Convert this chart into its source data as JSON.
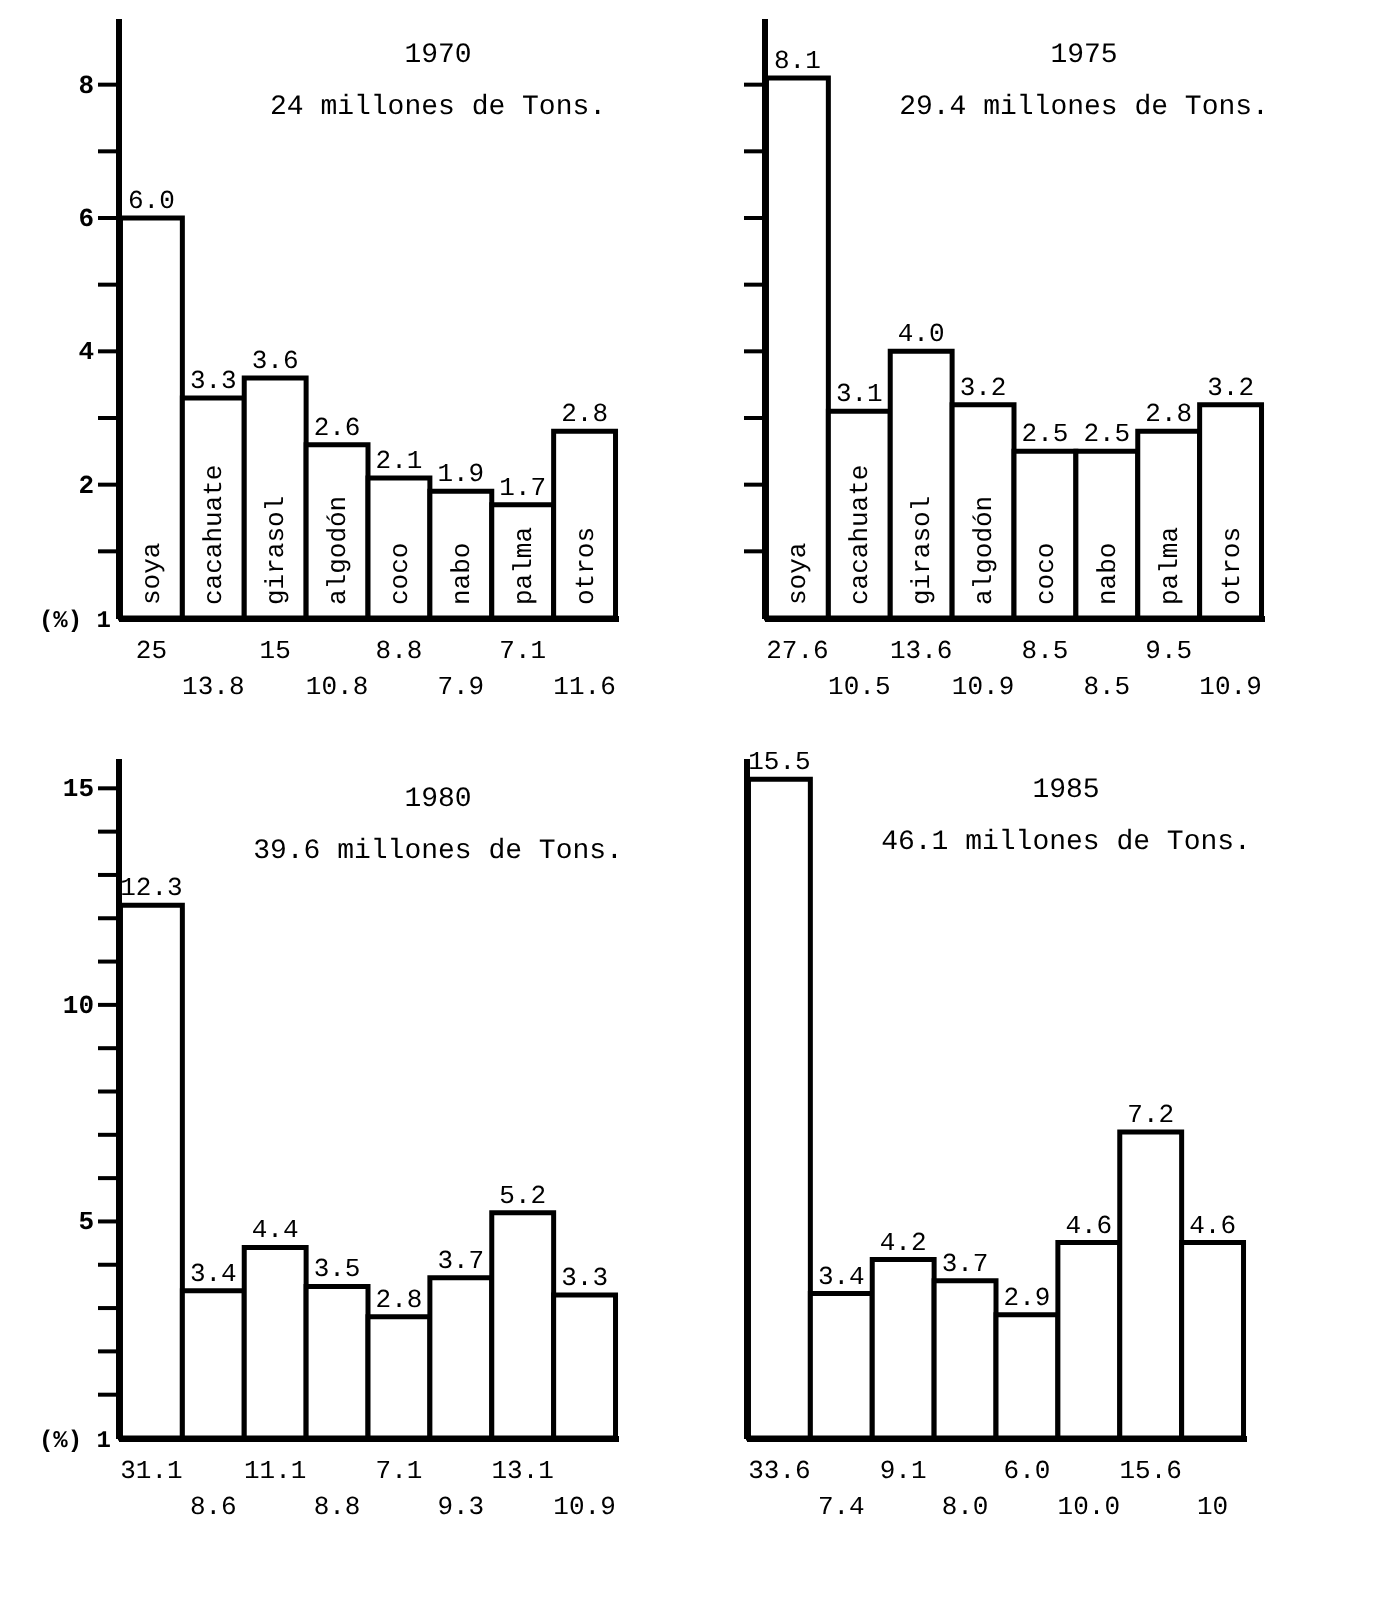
{
  "chart_data": [
    {
      "type": "bar",
      "title": "1970",
      "subtitle": "24 millones de Tons.",
      "ylabel": "(%) 1",
      "categories": [
        "soya",
        "cacahuate",
        "girasol",
        "algodón",
        "coco",
        "nabo",
        "palma",
        "otros"
      ],
      "values": [
        6.0,
        3.3,
        3.6,
        2.6,
        2.1,
        1.9,
        1.7,
        2.8
      ],
      "color": "#ffffff",
      "ylim": [
        0,
        9
      ],
      "yticks": [
        {
          "value": 1,
          "label": null
        },
        2,
        {
          "value": 3,
          "label": null
        },
        4,
        {
          "value": 5,
          "label": null
        },
        6,
        {
          "value": 7,
          "label": null
        },
        8
      ],
      "value_labels": [
        "6.0",
        "3.3",
        "3.6",
        "2.6",
        "2.1",
        "1.9",
        "1.7",
        "2.8"
      ],
      "annotations": [
        "25",
        "13.8",
        "15",
        "10.8",
        "8.8",
        "7.9",
        "7.1",
        "11.6"
      ]
    },
    {
      "type": "bar",
      "title": "1975",
      "subtitle": "29.4 millones de Tons.",
      "categories": [
        "soya",
        "cacahuate",
        "girasol",
        "algodón",
        "coco",
        "nabo",
        "palma",
        "otros"
      ],
      "values": [
        8.1,
        3.1,
        4.0,
        3.2,
        2.5,
        2.5,
        2.8,
        3.2
      ],
      "color": "#ffffff",
      "ylim": [
        0,
        9
      ],
      "yticks": [
        {
          "value": 1,
          "label": null
        },
        {
          "value": 2,
          "label": null
        },
        {
          "value": 3,
          "label": null
        },
        {
          "value": 4,
          "label": null
        },
        {
          "value": 5,
          "label": null
        },
        {
          "value": 6,
          "label": null
        },
        {
          "value": 7,
          "label": null
        },
        {
          "value": 8,
          "label": null
        }
      ],
      "tick_labels": "x",
      "value_labels": [
        "8.1",
        "3.1",
        "4.0",
        "3.2",
        "2.5",
        "2.5",
        "2.8",
        "3.2"
      ],
      "annotations": [
        "27.6",
        "10.5",
        "13.6",
        "10.9",
        "8.5",
        "8.5",
        "9.5",
        "10.9"
      ]
    },
    {
      "type": "bar",
      "title": "1980",
      "subtitle": "39.6 millones de Tons.",
      "ylabel": "(%) 1",
      "categories": [
        null,
        null,
        null,
        null,
        null,
        null,
        null,
        null
      ],
      "values": [
        12.3,
        3.4,
        4.4,
        3.5,
        2.8,
        3.7,
        5.2,
        3.3
      ],
      "color": "#ffffff",
      "ylim": [
        0,
        15.7
      ],
      "yticks": [
        {
          "value": 1,
          "label": null
        },
        {
          "value": 2,
          "label": null
        },
        {
          "value": 3,
          "label": null
        },
        {
          "value": 4,
          "label": null
        },
        5,
        {
          "value": 6,
          "label": null
        },
        {
          "value": 7,
          "label": null
        },
        {
          "value": 8,
          "label": null
        },
        {
          "value": 9,
          "label": null
        },
        10,
        {
          "value": 11,
          "label": null
        },
        {
          "value": 12,
          "label": null
        },
        {
          "value": 13,
          "label": null
        },
        {
          "value": 14,
          "label": null
        },
        15
      ],
      "tick_labels": "y",
      "value_labels": [
        "12.3",
        "3.4",
        "4.4",
        "3.5",
        "2.8",
        "3.7",
        "5.2",
        "3.3"
      ],
      "annotations": [
        "31.1",
        "8.6",
        "11.1",
        "8.8",
        "7.1",
        "9.3",
        "13.1",
        "10.9"
      ]
    },
    {
      "type": "bar",
      "title": "1985",
      "subtitle": "46.1 millones de Tons.",
      "categories": [
        null,
        null,
        null,
        null,
        null,
        null,
        null,
        null
      ],
      "values": [
        15.5,
        3.4,
        4.2,
        3.7,
        2.9,
        4.6,
        7.2,
        4.6
      ],
      "color": "#ffffff",
      "ylim": [
        0,
        16
      ],
      "tick_labels": false,
      "value_labels": [
        "15.5",
        "3.4",
        "4.2",
        "3.7",
        "2.9",
        "4.6",
        "7.2",
        "4.6"
      ],
      "annotations": [
        "33.6",
        "7.4",
        "9.1",
        "8.0",
        "6.0",
        "10.0",
        "15.6",
        "10"
      ]
    }
  ]
}
